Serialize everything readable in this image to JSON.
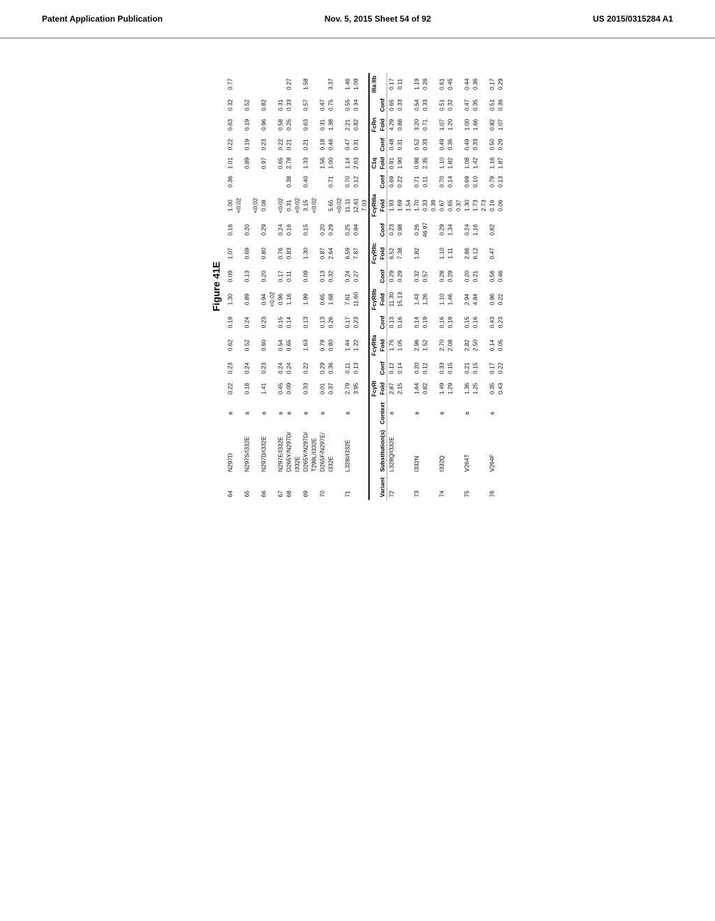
{
  "header": {
    "left": "Patent Application Publication",
    "mid": "Nov. 5, 2015  Sheet 54 of 92",
    "right": "US 2015/0315284 A1"
  },
  "figure_label": "Figure 41E",
  "section1": {
    "rows": [
      {
        "v": "64",
        "sub": "N297D",
        "ctx": "a",
        "c": [
          "0.22",
          "0.23",
          "0.62",
          "0.19",
          "1.30",
          "0.09",
          "1.07",
          "0.16",
          "1.00",
          "0.36",
          "1.01",
          "0.22",
          "0.63",
          "0.32",
          "0.77"
        ]
      },
      {
        "v": "",
        "sub": "",
        "ctx": "",
        "c": [
          "",
          "",
          "",
          "",
          "",
          "",
          "",
          "",
          "<0.02",
          "",
          "",
          "",
          "",
          "",
          ""
        ]
      },
      {
        "v": "65",
        "sub": "N297S/I332E",
        "ctx": "a",
        "c": [
          "0.18",
          "0.24",
          "0.52",
          "0.24",
          "0.89",
          "0.13",
          "0.69",
          "0.20",
          "",
          "",
          "0.89",
          "0.19",
          "0.19",
          "0.52",
          ""
        ]
      },
      {
        "v": "",
        "sub": "",
        "ctx": "",
        "c": [
          "",
          "",
          "",
          "",
          "",
          "",
          "",
          "",
          "<0.02",
          "",
          "",
          "",
          "",
          "",
          ""
        ]
      },
      {
        "v": "66",
        "sub": "N297D/I332E",
        "ctx": "a",
        "c": [
          "1.41",
          "0.23",
          "0.60",
          "0.23",
          "0.94",
          "0.20",
          "0.80",
          "0.29",
          "0.08",
          "",
          "0.97",
          "0.23",
          "0.96",
          "0.82",
          ""
        ]
      },
      {
        "v": "",
        "sub": "",
        "ctx": "",
        "c": [
          "",
          "",
          "",
          "",
          "<0.02",
          "",
          "",
          "",
          "",
          "",
          "",
          "",
          "",
          "",
          ""
        ]
      },
      {
        "v": "67",
        "sub": "N297E/I332E",
        "ctx": "a",
        "c": [
          "0.45",
          "0.24",
          "0.54",
          "0.15",
          "0.96",
          "0.17",
          "0.76",
          "0.24",
          "<0.02",
          "",
          "0.65",
          "0.22",
          "0.58",
          "0.31",
          ""
        ]
      },
      {
        "v": "68",
        "sub": "D265Y/N297D/",
        "ctx": "a",
        "c": [
          "0.09",
          "0.24",
          "0.65",
          "0.14",
          "1.16",
          "0.11",
          "0.83",
          "0.16",
          "0.31",
          "0.38",
          "2.78",
          "0.21",
          "0.25",
          "0.33",
          "0.27"
        ]
      },
      {
        "v": "",
        "sub": "I332E",
        "ctx": "",
        "c": [
          "",
          "",
          "",
          "",
          "",
          "",
          "",
          "",
          "<0.02",
          "",
          "",
          "",
          "",
          "",
          ""
        ]
      },
      {
        "v": "69",
        "sub": "D265Y/N297D/",
        "ctx": "a",
        "c": [
          "0.33",
          "0.22",
          "1.63",
          "0.13",
          "1.99",
          "0.09",
          "1.30",
          "0.15",
          "3.15",
          "0.40",
          "1.33",
          "0.21",
          "0.63",
          "0.57",
          "1.58"
        ]
      },
      {
        "v": "",
        "sub": "T299L/I332E",
        "ctx": "",
        "c": [
          "",
          "",
          "",
          "",
          "",
          "",
          "",
          "",
          "<0.02",
          "",
          "",
          "",
          "",
          "",
          ""
        ]
      },
      {
        "v": "70",
        "sub": "D265F/N297E/",
        "ctx": "a",
        "c": [
          "0.01",
          "0.29",
          "0.79",
          "0.13",
          "0.65",
          "0.13",
          "0.87",
          "0.20",
          "",
          "",
          "1.56",
          "0.18",
          "0.31",
          "0.47",
          ""
        ]
      },
      {
        "v": "",
        "sub": "I332E",
        "ctx": "",
        "c": [
          "0.37",
          "0.36",
          "0.80",
          "0.26",
          "1.68",
          "0.32",
          "2.64",
          "0.29",
          "5.65",
          "0.71",
          "1.00",
          "0.46",
          "1.38",
          "0.75",
          "3.37"
        ]
      },
      {
        "v": "",
        "sub": "",
        "ctx": "",
        "c": [
          "",
          "",
          "",
          "",
          "",
          "",
          "",
          "",
          "<0.02",
          "",
          "",
          "",
          "",
          "",
          ""
        ]
      },
      {
        "v": "71",
        "sub": "L328I/I332E",
        "ctx": "a",
        "c": [
          "2.79",
          "0.11",
          "1.44",
          "0.17",
          "7.61",
          "0.24",
          "6.59",
          "0.25",
          "11.11",
          "0.70",
          "1.14",
          "0.47",
          "2.21",
          "0.55",
          "1.46"
        ]
      },
      {
        "v": "",
        "sub": "",
        "ctx": "",
        "c": [
          "3.95",
          "0.13",
          "1.22",
          "0.23",
          "11.60",
          "0.27",
          "7.87",
          "0.94",
          "12.61",
          "0.12",
          "2.63",
          "0.31",
          "0.82",
          "0.34",
          "1.09"
        ]
      },
      {
        "v": "",
        "sub": "",
        "ctx": "",
        "c": [
          "",
          "",
          "",
          "",
          "",
          "",
          "",
          "",
          "7.03",
          "",
          "",
          "",
          "",
          "",
          ""
        ]
      }
    ]
  },
  "group_headers": [
    "FcγRI",
    "",
    "FcγRIIa",
    "",
    "FcγRIIb",
    "",
    "FcγRIIc",
    "",
    "FcγRIIIa",
    "",
    "C1q",
    "",
    "FcRn",
    "",
    "IIIa:IIb"
  ],
  "fold_conf": [
    "Fold",
    "Conf",
    "Fold",
    "Conf",
    "Fold",
    "Conf",
    "Fold",
    "Conf",
    "Fold",
    "Conf",
    "Fold",
    "Conf",
    "Fold",
    "Conf",
    ""
  ],
  "section2": {
    "header_cols": [
      "Variant",
      "Substitution(s)",
      "Context"
    ],
    "rows": [
      {
        "v": "72",
        "sub": "L328Q/I332E",
        "ctx": "a",
        "c": [
          "2.87",
          "0.12",
          "1.76",
          "0.13",
          "11.30",
          "0.29",
          "6.52",
          "0.23",
          "1.93",
          "0.69",
          "0.91",
          "0.48",
          "4.29",
          "0.65",
          "0.17"
        ]
      },
      {
        "v": "",
        "sub": "",
        "ctx": "",
        "c": [
          "2.15",
          "0.14",
          "1.05",
          "0.16",
          "15.13",
          "0.29",
          "7.38",
          "0.98",
          "1.69",
          "0.22",
          "1.90",
          "0.31",
          "0.88",
          "0.33",
          "0.11"
        ]
      },
      {
        "v": "",
        "sub": "",
        "ctx": "",
        "c": [
          "",
          "",
          "",
          "",
          "",
          "",
          "",
          "",
          "1.54",
          "",
          "",
          "",
          "",
          "",
          ""
        ]
      },
      {
        "v": "73",
        "sub": "I332N",
        "ctx": "a",
        "c": [
          "1.64",
          "0.20",
          "2.96",
          "0.14",
          "1.43",
          "0.32",
          "1.82",
          "0.26",
          "1.70",
          "0.71",
          "0.98",
          "0.52",
          "3.20",
          "0.54",
          "1.19"
        ]
      },
      {
        "v": "",
        "sub": "",
        "ctx": "",
        "c": [
          "0.82",
          "0.12",
          "1.52",
          "0.19",
          "1.26",
          "0.57",
          "",
          "46.97",
          "0.33",
          "0.11",
          "2.35",
          "0.33",
          "0.71",
          "0.33",
          "0.26"
        ]
      },
      {
        "v": "",
        "sub": "",
        "ctx": "",
        "c": [
          "",
          "",
          "",
          "",
          "",
          "",
          "",
          "",
          "0.39",
          "",
          "",
          "",
          "",
          "",
          ""
        ]
      },
      {
        "v": "74",
        "sub": "I332Q",
        "ctx": "a",
        "c": [
          "1.49",
          "0.33",
          "2.70",
          "0.16",
          "1.10",
          "0.28",
          "1.10",
          "0.29",
          "0.67",
          "0.70",
          "1.10",
          "0.49",
          "1.07",
          "0.51",
          "0.61"
        ]
      },
      {
        "v": "",
        "sub": "",
        "ctx": "",
        "c": [
          "1.29",
          "0.15",
          "2.08",
          "0.19",
          "1.46",
          "0.29",
          "1.11",
          "1.34",
          "0.65",
          "0.14",
          "1.82",
          "0.36",
          "1.20",
          "0.32",
          "0.45"
        ]
      },
      {
        "v": "",
        "sub": "",
        "ctx": "",
        "c": [
          "",
          "",
          "",
          "",
          "",
          "",
          "",
          "",
          "0.37",
          "",
          "",
          "",
          "",
          "",
          ""
        ]
      },
      {
        "v": "75",
        "sub": "V264T",
        "ctx": "a",
        "c": [
          "1.36",
          "0.21",
          "2.82",
          "0.15",
          "2.94",
          "0.20",
          "2.86",
          "0.24",
          "1.30",
          "0.69",
          "1.08",
          "0.49",
          "1.00",
          "0.47",
          "0.44"
        ]
      },
      {
        "v": "",
        "sub": "",
        "ctx": "",
        "c": [
          "1.25",
          "0.15",
          "2.50",
          "0.16",
          "4.84",
          "0.21",
          "6.12",
          "1.16",
          "1.73",
          "0.10",
          "1.42",
          "0.33",
          "1.66",
          "0.35",
          "0.36"
        ]
      },
      {
        "v": "",
        "sub": "",
        "ctx": "",
        "c": [
          "",
          "",
          "",
          "",
          "",
          "",
          "",
          "",
          "2.73",
          "",
          "",
          "",
          "",
          "",
          ""
        ]
      },
      {
        "v": "76",
        "sub": "V264F",
        "ctx": "a",
        "c": [
          "0.35",
          "0.17",
          "0.14",
          "0.43",
          "0.96",
          "0.56",
          "0.47",
          "0.82",
          "0.16",
          "0.79",
          "1.16",
          "0.50",
          "0.82",
          "0.51",
          "0.17"
        ]
      },
      {
        "v": "",
        "sub": "",
        "ctx": "",
        "c": [
          "0.43",
          "0.22",
          "0.05",
          "0.23",
          "0.22",
          "0.46",
          "",
          "",
          "0.06",
          "0.13",
          "1.87",
          "0.29",
          "1.07",
          "0.36",
          "0.29"
        ]
      }
    ]
  }
}
